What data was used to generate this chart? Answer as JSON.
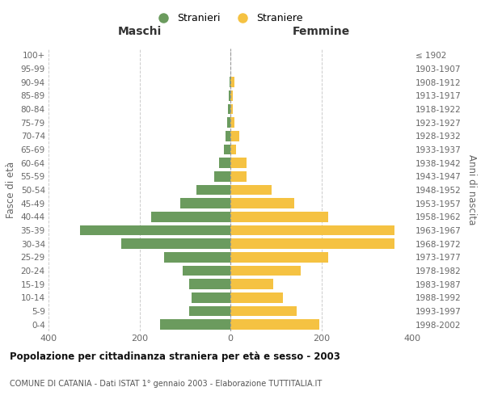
{
  "age_groups": [
    "0-4",
    "5-9",
    "10-14",
    "15-19",
    "20-24",
    "25-29",
    "30-34",
    "35-39",
    "40-44",
    "45-49",
    "50-54",
    "55-59",
    "60-64",
    "65-69",
    "70-74",
    "75-79",
    "80-84",
    "85-89",
    "90-94",
    "95-99",
    "100+"
  ],
  "birth_years": [
    "1998-2002",
    "1993-1997",
    "1988-1992",
    "1983-1987",
    "1978-1982",
    "1973-1977",
    "1968-1972",
    "1963-1967",
    "1958-1962",
    "1953-1957",
    "1948-1952",
    "1943-1947",
    "1938-1942",
    "1933-1937",
    "1928-1932",
    "1923-1927",
    "1918-1922",
    "1913-1917",
    "1908-1912",
    "1903-1907",
    "≤ 1902"
  ],
  "maschi": [
    155,
    90,
    85,
    90,
    105,
    145,
    240,
    330,
    175,
    110,
    75,
    35,
    25,
    15,
    10,
    8,
    5,
    3,
    2,
    0,
    0
  ],
  "femmine": [
    195,
    145,
    115,
    95,
    155,
    215,
    360,
    360,
    215,
    140,
    90,
    35,
    35,
    12,
    20,
    8,
    6,
    5,
    8,
    0,
    0
  ],
  "color_maschi": "#6b9b5e",
  "color_femmine": "#f5c242",
  "title": "Popolazione per cittadinanza straniera per età e sesso - 2003",
  "subtitle": "COMUNE DI CATANIA - Dati ISTAT 1° gennaio 2003 - Elaborazione TUTTITALIA.IT",
  "xlabel_left": "Maschi",
  "xlabel_right": "Femmine",
  "ylabel_left": "Fasce di età",
  "ylabel_right": "Anni di nascita",
  "legend_maschi": "Stranieri",
  "legend_femmine": "Straniere",
  "xlim": 400,
  "background_color": "#ffffff",
  "grid_color": "#cccccc"
}
